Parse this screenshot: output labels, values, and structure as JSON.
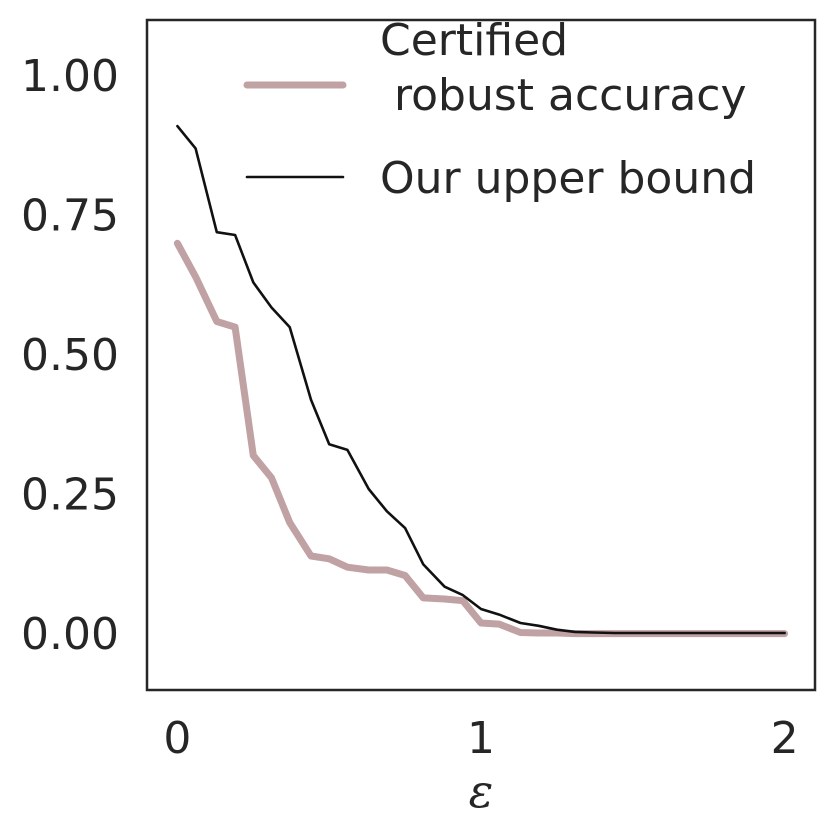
{
  "chart_data": {
    "type": "line",
    "title": "",
    "xlabel": "ε",
    "ylabel": "",
    "xlim": [
      -0.1,
      2.1
    ],
    "ylim": [
      -0.1,
      1.1
    ],
    "xticks": [
      "0",
      "1",
      "2"
    ],
    "xtick_values": [
      0,
      1,
      2
    ],
    "yticks": [
      "0.00",
      "0.25",
      "0.50",
      "0.75",
      "1.00"
    ],
    "ytick_values": [
      0,
      0.25,
      0.5,
      0.75,
      1.0
    ],
    "grid": false,
    "legend_position": "top-right",
    "series": [
      {
        "name": "Certified\n robust accuracy",
        "color": "#c0a1a4",
        "x": [
          0,
          0.06,
          0.13,
          0.19,
          0.25,
          0.31,
          0.37,
          0.44,
          0.5,
          0.56,
          0.63,
          0.69,
          0.75,
          0.81,
          0.88,
          0.94,
          1.0,
          1.06,
          1.13,
          1.19,
          1.25,
          1.31,
          1.37,
          1.44,
          1.5,
          1.56,
          1.63,
          1.69,
          1.75,
          1.81,
          1.88,
          1.94,
          2.0
        ],
        "y": [
          0.7,
          0.64,
          0.56,
          0.55,
          0.32,
          0.28,
          0.2,
          0.14,
          0.135,
          0.12,
          0.115,
          0.115,
          0.105,
          0.065,
          0.063,
          0.06,
          0.02,
          0.018,
          0.003,
          0.002,
          0.002,
          0.001,
          0.001,
          0.001,
          0.001,
          0.001,
          0.001,
          0.001,
          0.001,
          0.001,
          0.001,
          0.001,
          0.001
        ]
      },
      {
        "name": "Our upper bound",
        "color": "#111111",
        "x": [
          0,
          0.06,
          0.13,
          0.19,
          0.25,
          0.31,
          0.37,
          0.44,
          0.5,
          0.56,
          0.63,
          0.69,
          0.75,
          0.81,
          0.88,
          0.94,
          1.0,
          1.06,
          1.13,
          1.19,
          1.25,
          1.31,
          1.37,
          1.44,
          1.5,
          1.56,
          1.63,
          1.69,
          1.75,
          1.81,
          1.88,
          1.94,
          2.0
        ],
        "y": [
          0.91,
          0.87,
          0.72,
          0.715,
          0.63,
          0.585,
          0.55,
          0.42,
          0.34,
          0.33,
          0.26,
          0.22,
          0.19,
          0.125,
          0.085,
          0.07,
          0.045,
          0.035,
          0.02,
          0.015,
          0.008,
          0.004,
          0.003,
          0.002,
          0.002,
          0.002,
          0.002,
          0.002,
          0.002,
          0.002,
          0.002,
          0.002,
          0.002
        ]
      }
    ]
  }
}
